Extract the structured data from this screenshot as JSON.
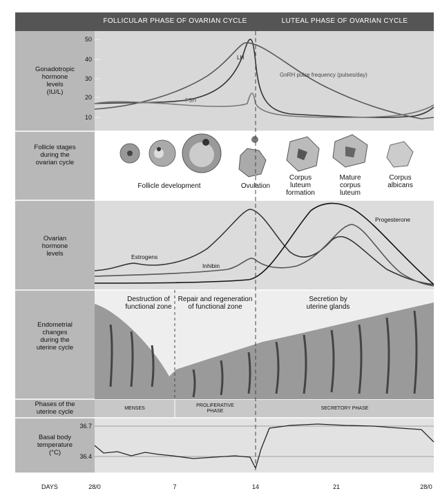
{
  "header": {
    "follicular": "FOLLICULAR PHASE OF OVARIAN CYCLE",
    "luteal": "LUTEAL PHASE OF OVARIAN CYCLE"
  },
  "rows": [
    "Gonadotropic\nhormone\nlevels\n(IU/L)",
    "Follicle stages\nduring the\novarian cycle",
    "Ovarian\nhormone\nlevels",
    "Endometrial\nchanges\nduring the\nuterine cycle",
    "Phases of the\nuterine cycle",
    "Basal body\ntemperature\n(°C)"
  ],
  "gonadotropic": {
    "yticks": [
      "50",
      "40",
      "30",
      "20",
      "10"
    ],
    "labels": {
      "lh": "LH",
      "fsh": "FSH",
      "gnrh": "GnRH pulse frequency (pulses/day)"
    }
  },
  "follicle": {
    "labels": [
      "Follicle development",
      "Ovulation",
      "Corpus\nluteum\nformation",
      "Mature\ncorpus\nluteum",
      "Corpus\nalbicans"
    ]
  },
  "ovarian": {
    "labels": [
      "Estrogens",
      "Inhibin",
      "Progesterone"
    ]
  },
  "endometrial": {
    "labels": [
      "Destruction of\nfunctional zone",
      "Repair and regeneration\nof functional zone",
      "Secretion by\nuterine glands"
    ]
  },
  "uterine_phases": [
    "MENSES",
    "PROLIFERATIVE\nPHASE",
    "SECRETORY PHASE"
  ],
  "temperature": {
    "yticks": [
      "36.7",
      "36.4"
    ]
  },
  "days": {
    "label": "DAYS",
    "ticks": [
      "28/0",
      "7",
      "14",
      "21",
      "28/0"
    ]
  }
}
